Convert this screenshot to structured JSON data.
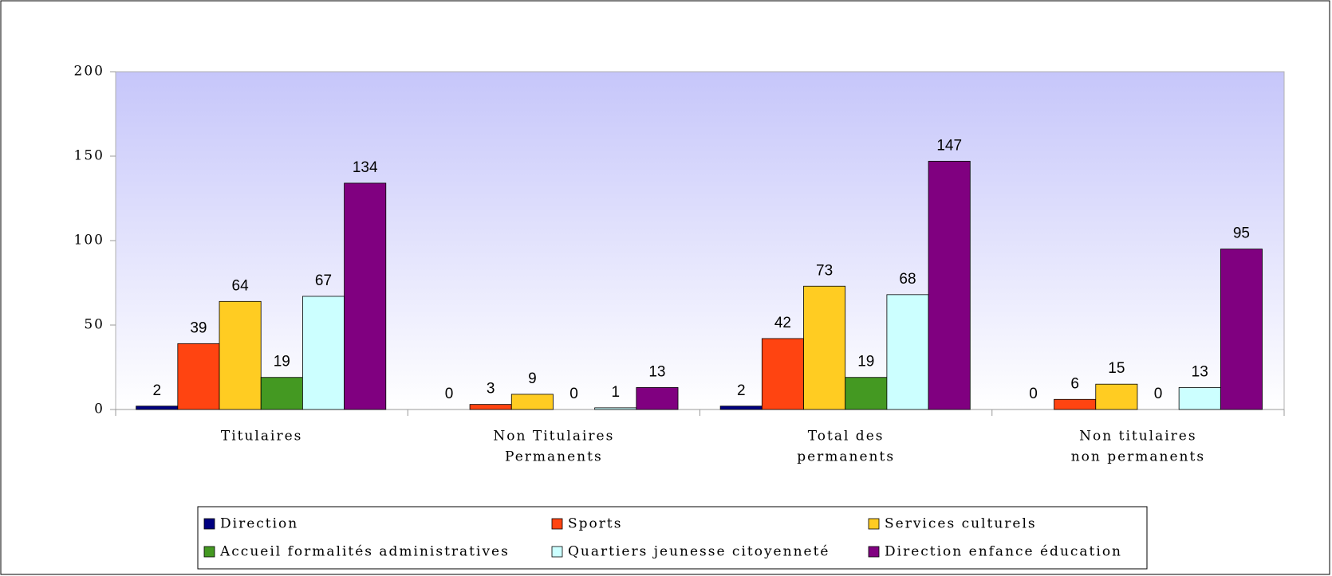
{
  "chart_data": {
    "type": "bar",
    "categories": [
      [
        "Titulaires"
      ],
      [
        "Non Titulaires",
        "Permanents"
      ],
      [
        "Total des",
        "permanents"
      ],
      [
        "Non titulaires",
        "non permanents"
      ]
    ],
    "series": [
      {
        "name": "Direction",
        "color": "#000080",
        "values": [
          2,
          0,
          2,
          0
        ]
      },
      {
        "name": "Sports",
        "color": "#ff4411",
        "values": [
          39,
          3,
          42,
          6
        ]
      },
      {
        "name": "Services culturels",
        "color": "#ffcc22",
        "values": [
          64,
          9,
          73,
          15
        ]
      },
      {
        "name": "Accueil formalités administratives",
        "color": "#449922",
        "values": [
          19,
          0,
          19,
          0
        ]
      },
      {
        "name": "Quartiers jeunesse citoyenneté",
        "color": "#ccffff",
        "values": [
          67,
          1,
          68,
          13
        ]
      },
      {
        "name": "Direction enfance éducation",
        "color": "#800080",
        "values": [
          134,
          13,
          147,
          95
        ]
      }
    ],
    "ylim": [
      0,
      200
    ],
    "yticks": [
      0,
      50,
      100,
      150,
      200
    ],
    "legend": "bottom"
  }
}
